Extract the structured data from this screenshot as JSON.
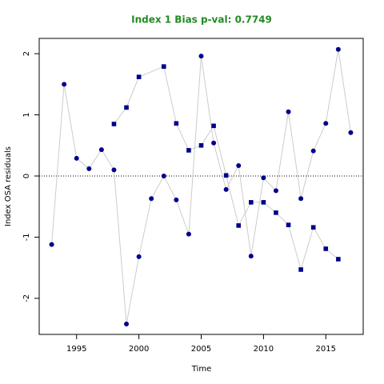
{
  "chart_data": {
    "type": "scatter",
    "title": "Index 1 Bias p-val: 0.7749",
    "title_color": "#228b22",
    "x_label": "Time",
    "y_label": "Index OSA residuals",
    "xlim": [
      1992,
      2018
    ],
    "ylim": [
      -2.59,
      2.25
    ],
    "xticks": [
      1995,
      2000,
      2005,
      2010,
      2015
    ],
    "yticks": [
      -2,
      -1,
      0,
      1,
      2
    ],
    "hline": 0,
    "line_color": "#cccccc",
    "series": [
      {
        "color": "#00008b",
        "marker": "circle",
        "x": [
          1993,
          1994,
          1995,
          1996,
          1997,
          1998,
          1999,
          2000,
          2001,
          2002,
          2003,
          2004,
          2005,
          2006,
          2007,
          2008,
          2009,
          2010,
          2011,
          2012,
          2013,
          2014,
          2015,
          2016,
          2017
        ],
        "values": [
          -1.12,
          1.5,
          0.29,
          0.12,
          0.43,
          0.1,
          -2.42,
          -1.32,
          -0.37,
          0.0,
          -0.39,
          -0.95,
          1.96,
          0.54,
          -0.22,
          0.17,
          -1.31,
          -0.03,
          -0.24,
          1.05,
          -0.37,
          0.41,
          0.86,
          2.07,
          0.71
        ]
      },
      {
        "color": "#00008b",
        "marker": "square",
        "x": [
          1998,
          1999,
          2000,
          2002,
          2003,
          2004,
          2005,
          2006,
          2007,
          2008,
          2009,
          2010,
          2011,
          2012,
          2013,
          2014,
          2015,
          2016
        ],
        "values": [
          0.85,
          1.12,
          1.62,
          1.79,
          0.86,
          0.42,
          0.5,
          0.82,
          0.01,
          -0.81,
          -0.43,
          -0.43,
          -0.6,
          -0.8,
          -1.53,
          -0.84,
          -1.19,
          -1.36
        ]
      }
    ]
  }
}
